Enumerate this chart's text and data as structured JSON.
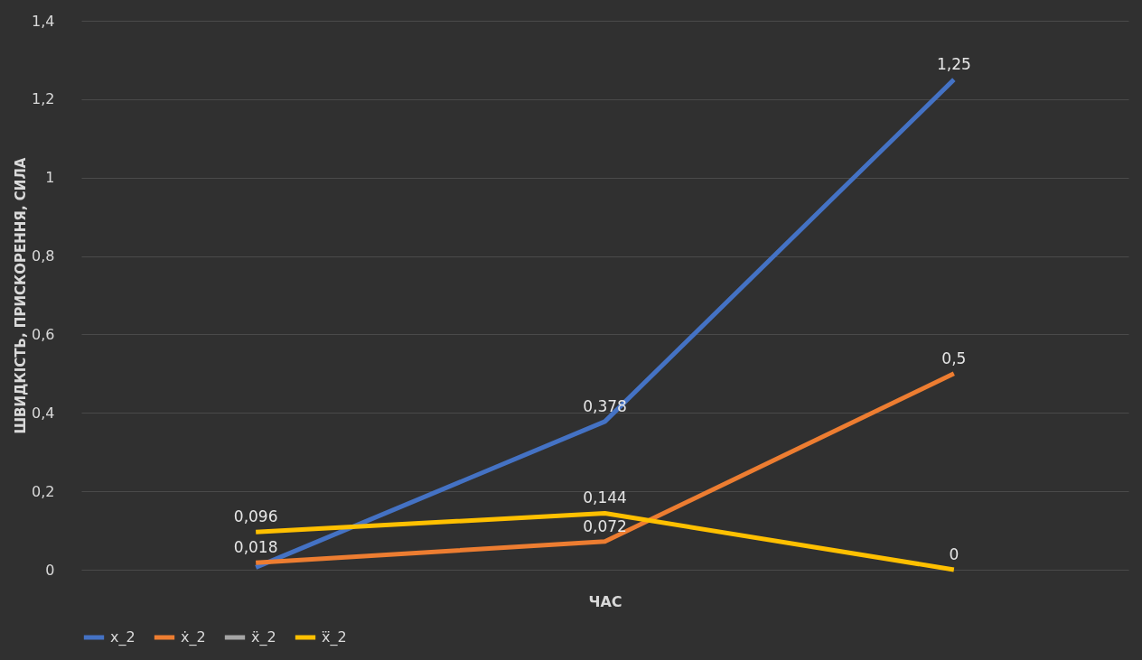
{
  "chart_data": {
    "type": "line",
    "xlabel": "ЧАС",
    "ylabel": "ШВИДКІСТЬ, ПРИСКОРЕННЯ, СИЛА",
    "categories": [
      null,
      null,
      null
    ],
    "ylim": [
      0,
      1.4
    ],
    "yticks": [
      0,
      {
        "value": 0.2,
        "label": "0,2"
      },
      {
        "value": 0.4,
        "label": "0,4"
      },
      {
        "value": 0.6,
        "label": "0,6"
      },
      {
        "value": 0.8,
        "label": "0,8"
      },
      1,
      {
        "value": 1.2,
        "label": "1,2"
      },
      {
        "value": 1.4,
        "label": "1,4"
      }
    ],
    "grid": "y",
    "legend": "bottom",
    "marker": "none",
    "line_style": "solid",
    "series": [
      {
        "name": "x_2",
        "color": "#4472c4",
        "values": [
          0.006,
          0.378,
          1.25
        ],
        "value_labels": [
          null,
          "0,378",
          "1,25"
        ]
      },
      {
        "name": "ẋ_2",
        "color": "#ed7d31",
        "values": [
          0.018,
          0.072,
          0.5
        ],
        "value_labels": [
          "0,018",
          "0,072",
          "0,5"
        ]
      },
      {
        "name": "ẍ_2",
        "color": "#a5a5a5",
        "values": [
          null,
          null,
          null
        ],
        "value_labels": [
          null,
          null,
          null
        ]
      },
      {
        "name": "x⃛_2",
        "color": "#ffc000",
        "values": [
          0.096,
          0.144,
          0
        ],
        "value_labels": [
          "0,096",
          "0,144",
          "0"
        ]
      }
    ]
  }
}
